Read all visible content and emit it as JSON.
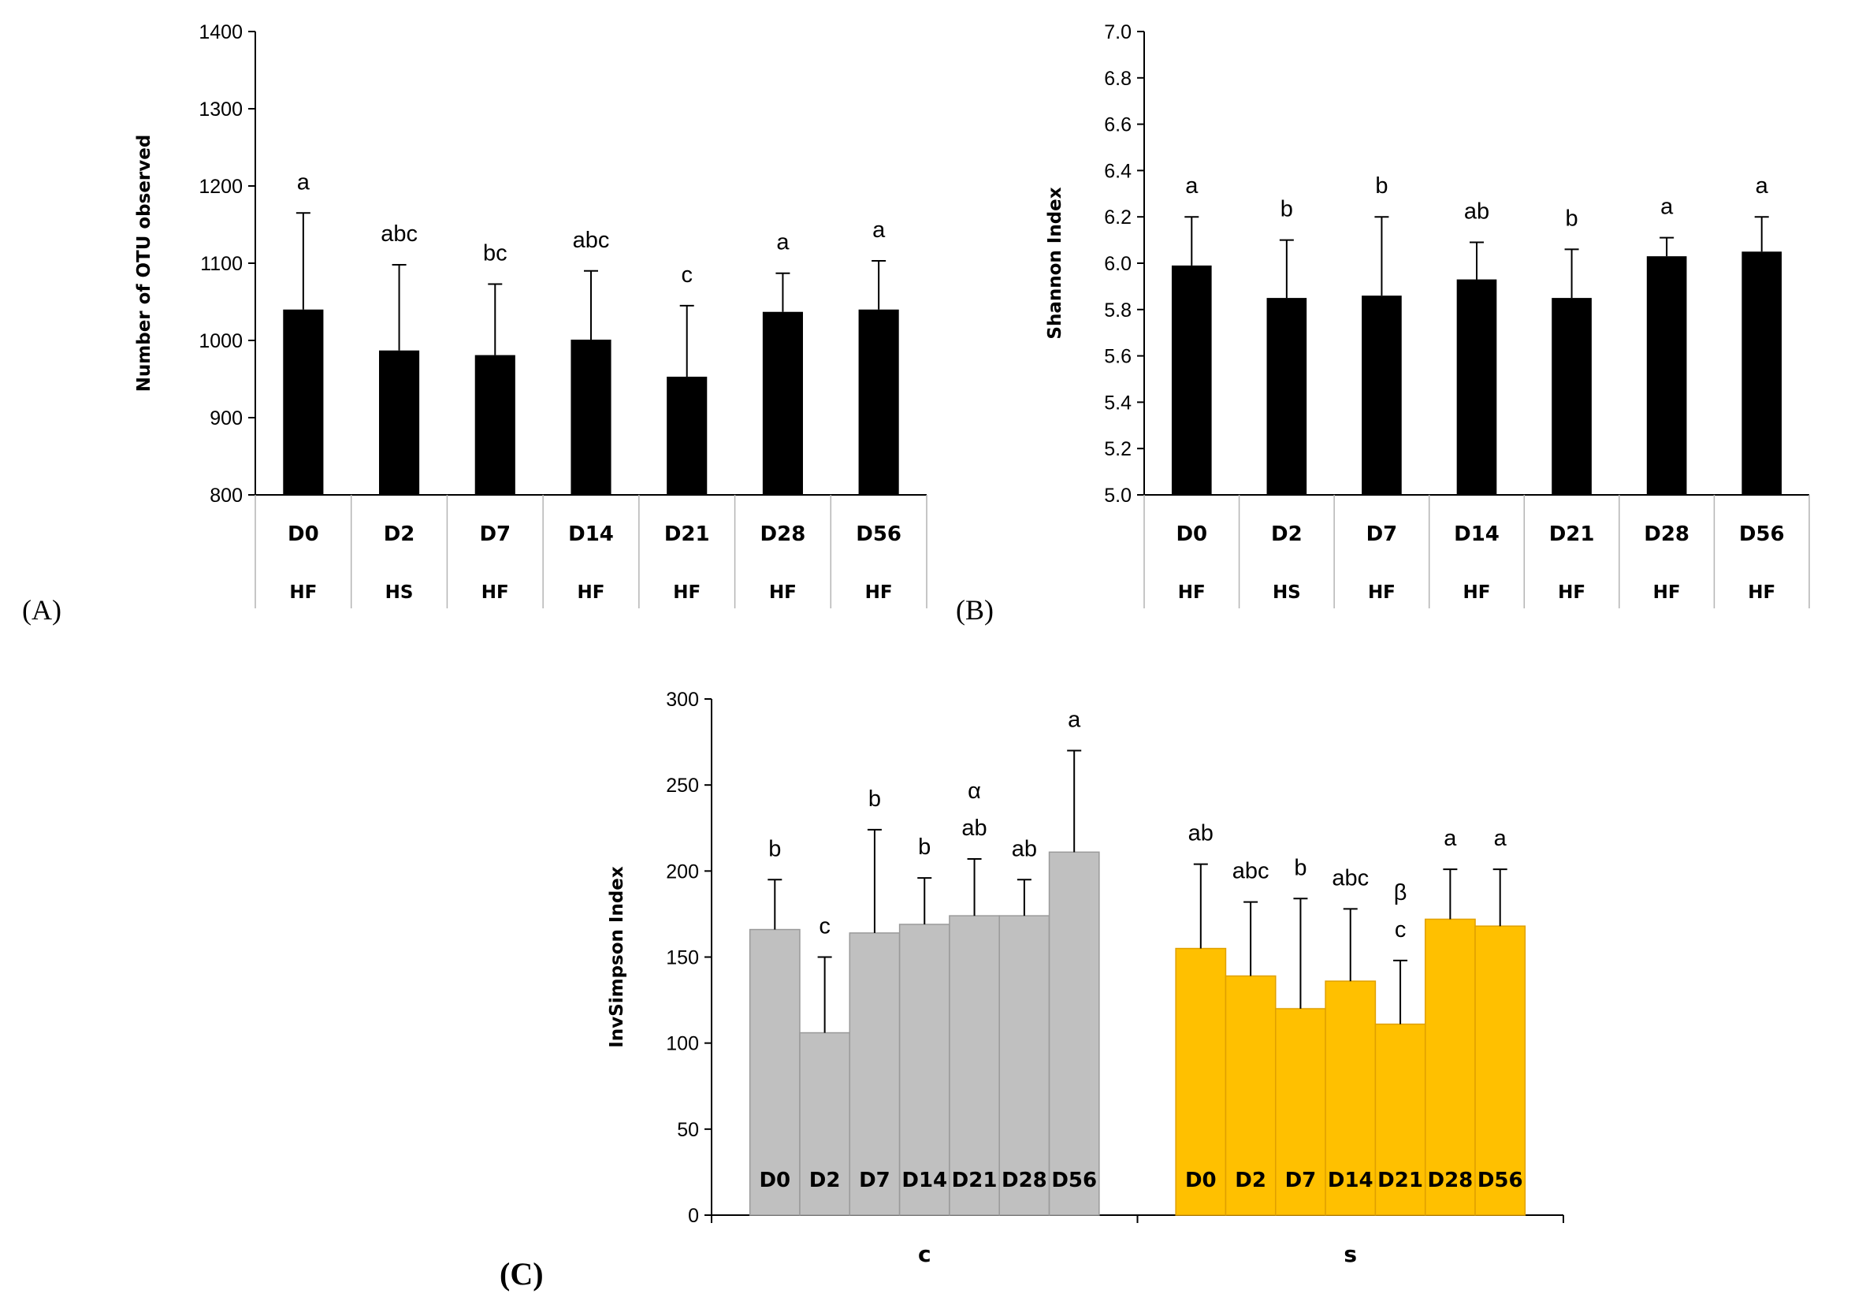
{
  "chart_data": [
    {
      "id": "A",
      "type": "bar",
      "panel_label": "(A)",
      "ylabel": "Number of OTU observed",
      "ylim": [
        800,
        1400
      ],
      "yticks": [
        800,
        900,
        1000,
        1100,
        1200,
        1300,
        1400
      ],
      "categories": [
        "D0",
        "D2",
        "D7",
        "D14",
        "D21",
        "D28",
        "D56"
      ],
      "subcategories": [
        "HF",
        "HS",
        "HF",
        "HF",
        "HF",
        "HF",
        "HF"
      ],
      "values": [
        1040,
        987,
        981,
        1001,
        953,
        1037,
        1040
      ],
      "errors": [
        125,
        111,
        92,
        89,
        92,
        50,
        63
      ],
      "significance": [
        "a",
        "abc",
        "bc",
        "abc",
        "c",
        "a",
        "a"
      ],
      "bar_color": "#000000"
    },
    {
      "id": "B",
      "type": "bar",
      "panel_label": "(B)",
      "ylabel": "Shannon Index",
      "ylim": [
        5.0,
        7.0
      ],
      "yticks": [
        "5.0",
        "5.2",
        "5.4",
        "5.6",
        "5.8",
        "6.0",
        "6.2",
        "6.4",
        "6.6",
        "6.8",
        "7.0"
      ],
      "categories": [
        "D0",
        "D2",
        "D7",
        "D14",
        "D21",
        "D28",
        "D56"
      ],
      "subcategories": [
        "HF",
        "HS",
        "HF",
        "HF",
        "HF",
        "HF",
        "HF"
      ],
      "values": [
        5.99,
        5.85,
        5.86,
        5.93,
        5.85,
        6.03,
        6.05
      ],
      "errors": [
        0.21,
        0.25,
        0.34,
        0.16,
        0.21,
        0.08,
        0.15
      ],
      "significance": [
        "a",
        "b",
        "b",
        "ab",
        "b",
        "a",
        "a"
      ],
      "bar_color": "#000000"
    },
    {
      "id": "C",
      "type": "bar",
      "panel_label": "(C)",
      "ylabel": "InvSimpson Index",
      "ylim": [
        0,
        300
      ],
      "yticks": [
        0,
        50,
        100,
        150,
        200,
        250,
        300
      ],
      "groups": [
        "c",
        "s"
      ],
      "series": [
        {
          "name": "c",
          "color": "#c0c0c0",
          "edge": "#9a9a9a",
          "categories": [
            "D0",
            "D2",
            "D7",
            "D14",
            "D21",
            "D28",
            "D56"
          ],
          "values": [
            166,
            106,
            164,
            169,
            174,
            174,
            211
          ],
          "errors": [
            29,
            44,
            60,
            27,
            33,
            21,
            59
          ],
          "significance": [
            [
              "b"
            ],
            [
              "c"
            ],
            [
              "b"
            ],
            [
              "b"
            ],
            [
              "α",
              "ab"
            ],
            [
              "ab"
            ],
            [
              "a"
            ]
          ]
        },
        {
          "name": "s",
          "color": "#ffc000",
          "edge": "#e0a000",
          "categories": [
            "D0",
            "D2",
            "D7",
            "D14",
            "D21",
            "D28",
            "D56"
          ],
          "values": [
            155,
            139,
            120,
            136,
            111,
            172,
            168
          ],
          "errors": [
            49,
            43,
            64,
            42,
            37,
            29,
            33
          ],
          "significance": [
            [
              "ab"
            ],
            [
              "abc"
            ],
            [
              "b"
            ],
            [
              "abc"
            ],
            [
              "β",
              "c"
            ],
            [
              "a"
            ],
            [
              "a"
            ]
          ]
        }
      ]
    }
  ]
}
